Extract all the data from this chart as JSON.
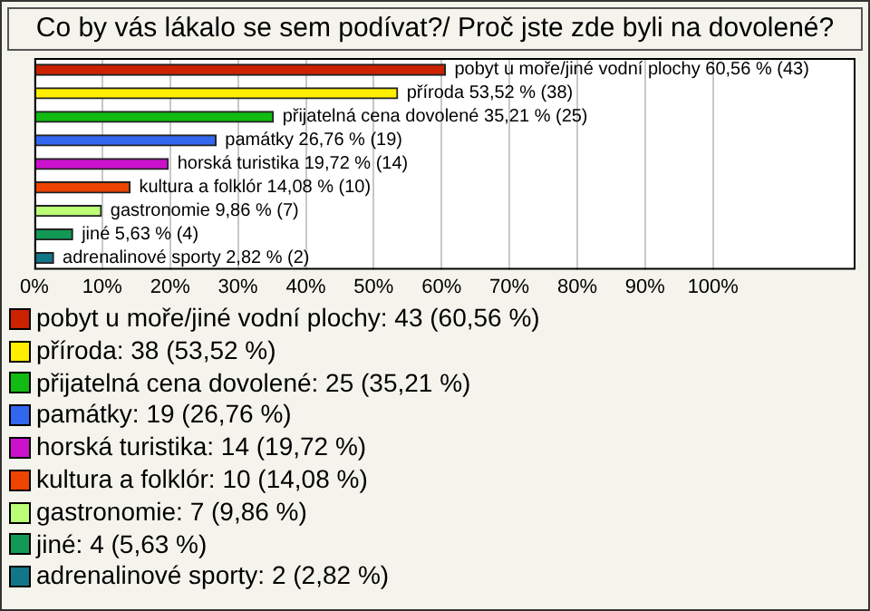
{
  "chart_data": {
    "type": "bar",
    "orientation": "horizontal",
    "title": "Co by vás lákalo se sem podívat?/ Proč jste zde byli na dovolené?",
    "categories": [
      null,
      null,
      null,
      null,
      null,
      null,
      null,
      null,
      null
    ],
    "series": [
      {
        "name": "pobyt u moře/jiné vodní plochy: 43 (60,56 %)",
        "color": "#cc2200",
        "values": [
          60.56,
          null,
          null,
          null,
          null,
          null,
          null,
          null,
          null
        ],
        "value_labels": [
          "pobyt u moře/jiné vodní plochy 60,56 % (43)",
          null,
          null,
          null,
          null,
          null,
          null,
          null,
          null
        ]
      },
      {
        "name": "příroda: 38 (53,52 %)",
        "color": "#ffee00",
        "values": [
          null,
          53.52,
          null,
          null,
          null,
          null,
          null,
          null,
          null
        ],
        "value_labels": [
          null,
          "příroda 53,52 % (38)",
          null,
          null,
          null,
          null,
          null,
          null,
          null
        ]
      },
      {
        "name": "přijatelná cena dovolené: 25 (35,21 %)",
        "color": "#11bb11",
        "values": [
          null,
          null,
          35.21,
          null,
          null,
          null,
          null,
          null,
          null
        ],
        "value_labels": [
          null,
          null,
          "přijatelná cena dovolené 35,21 % (25)",
          null,
          null,
          null,
          null,
          null,
          null
        ]
      },
      {
        "name": "památky: 19 (26,76 %)",
        "color": "#3366ee",
        "values": [
          null,
          null,
          null,
          26.76,
          null,
          null,
          null,
          null,
          null
        ],
        "value_labels": [
          null,
          null,
          null,
          "památky 26,76 % (19)",
          null,
          null,
          null,
          null,
          null
        ]
      },
      {
        "name": "horská turistika: 14 (19,72 %)",
        "color": "#cc11cc",
        "values": [
          null,
          null,
          null,
          null,
          19.72,
          null,
          null,
          null,
          null
        ],
        "value_labels": [
          null,
          null,
          null,
          null,
          "horská turistika 19,72 % (14)",
          null,
          null,
          null,
          null
        ]
      },
      {
        "name": "kultura a folklór: 10 (14,08 %)",
        "color": "#ee4400",
        "values": [
          null,
          null,
          null,
          null,
          null,
          14.08,
          null,
          null,
          null
        ],
        "value_labels": [
          null,
          null,
          null,
          null,
          null,
          "kultura a folklór 14,08 % (10)",
          null,
          null,
          null
        ]
      },
      {
        "name": "gastronomie: 7 (9,86 %)",
        "color": "#bbff77",
        "values": [
          null,
          null,
          null,
          null,
          null,
          null,
          9.86,
          null,
          null
        ],
        "value_labels": [
          null,
          null,
          null,
          null,
          null,
          null,
          "gastronomie 9,86 % (7)",
          null,
          null
        ]
      },
      {
        "name": "jiné: 4 (5,63 %)",
        "color": "#119955",
        "values": [
          null,
          null,
          null,
          null,
          null,
          null,
          null,
          5.63,
          null
        ],
        "value_labels": [
          null,
          null,
          null,
          null,
          null,
          null,
          null,
          "jiné 5,63 % (4)",
          null
        ]
      },
      {
        "name": "adrenalinové sporty: 2 (2,82 %)",
        "color": "#117788",
        "values": [
          null,
          null,
          null,
          null,
          null,
          null,
          null,
          null,
          2.82
        ],
        "value_labels": [
          null,
          null,
          null,
          null,
          null,
          null,
          null,
          null,
          "adrenalinové sporty 2,82 % (2)"
        ]
      }
    ],
    "xlim": [
      0,
      121
    ],
    "xticks": [
      {
        "value": 0,
        "label": "0%"
      },
      {
        "value": 10,
        "label": "10%"
      },
      {
        "value": 20,
        "label": "20%"
      },
      {
        "value": 30,
        "label": "30%"
      },
      {
        "value": 40,
        "label": "40%"
      },
      {
        "value": 50,
        "label": "50%"
      },
      {
        "value": 60,
        "label": "60%"
      },
      {
        "value": 70,
        "label": "70%"
      },
      {
        "value": 80,
        "label": "80%"
      },
      {
        "value": 90,
        "label": "90%"
      },
      {
        "value": 100,
        "label": "100%"
      }
    ],
    "grid": "x",
    "legend": "bottom"
  }
}
